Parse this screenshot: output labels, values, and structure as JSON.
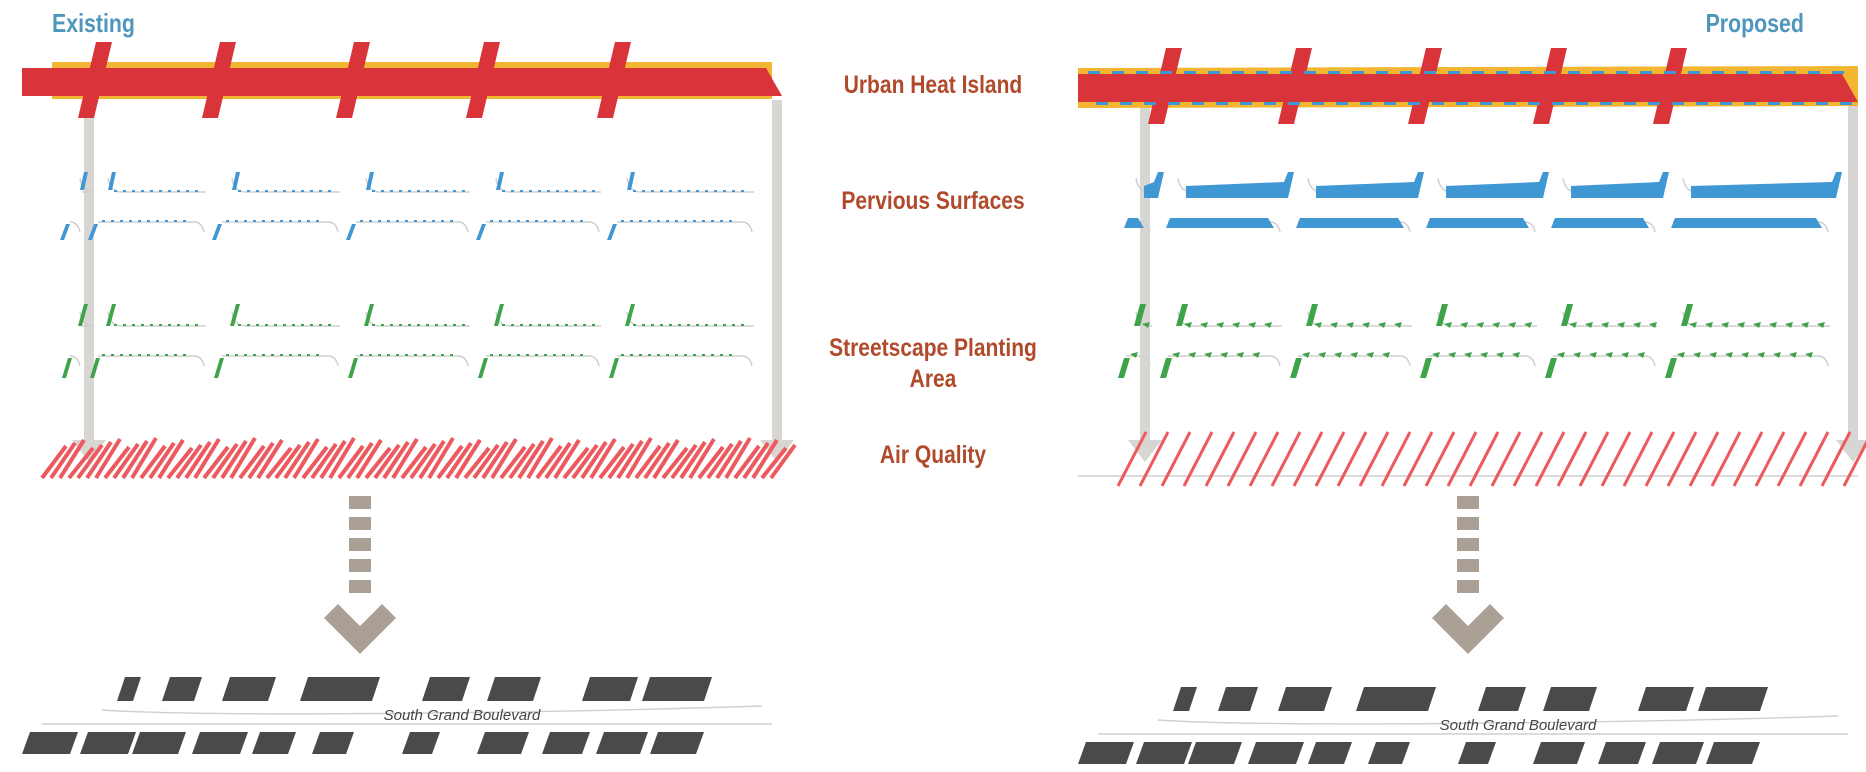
{
  "headings": {
    "existing": "Existing",
    "proposed": "Proposed"
  },
  "layers": [
    {
      "label": "Urban Heat Island"
    },
    {
      "label": "Pervious Surfaces"
    },
    {
      "label": "Streetscape Planting Area"
    },
    {
      "label": "Air Quality"
    }
  ],
  "street_name": "South Grand Boulevard",
  "colors": {
    "heading": "#4f96bd",
    "label": "#b04a2b",
    "heat_red": "#d8343a",
    "heat_yellow": "#f2b632",
    "pervious_blue": "#3f97d3",
    "planting_green": "#3fa34a",
    "air_pink": "#ec5a5f",
    "connector_gray": "#d8d6d3",
    "arrow_taupe": "#aaa096",
    "building_gray": "#4a4a4a"
  },
  "icons": {
    "flow_arrow": "down-arrow-icon"
  }
}
